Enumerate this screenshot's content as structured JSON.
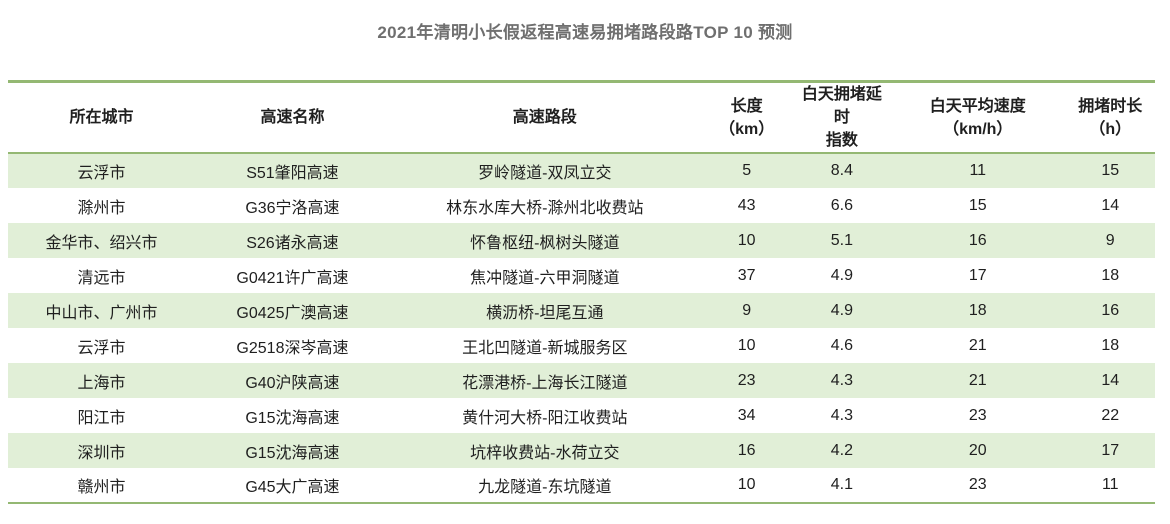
{
  "title": "2021年清明小长假返程高速易拥堵路段路TOP 10 预测",
  "theme": {
    "border_green": "#94b873",
    "stripe_green": "#e1efd7",
    "title_gray": "#6f6f6f",
    "text_color": "#1f1f1f"
  },
  "chart_data": {
    "type": "table",
    "title": "2021年清明小长假返程高速易拥堵路段路TOP 10 预测",
    "legend_position": "none",
    "grid": "striped-rows",
    "columns": [
      {
        "id": "city",
        "label": "所在城市",
        "label_lines": [
          "所在城市"
        ]
      },
      {
        "id": "highway",
        "label": "高速名称",
        "label_lines": [
          "高速名称"
        ]
      },
      {
        "id": "section",
        "label": "高速路段",
        "label_lines": [
          "高速路段"
        ]
      },
      {
        "id": "length_km",
        "label": "长度（km）",
        "label_lines": [
          "长度",
          "（km）"
        ]
      },
      {
        "id": "delay_index",
        "label": "白天拥堵延时指数",
        "label_lines": [
          "白天拥堵延时",
          "指数"
        ]
      },
      {
        "id": "avg_speed",
        "label": "白天平均速度（km/h）",
        "label_lines": [
          "白天平均速度",
          "（km/h）"
        ]
      },
      {
        "id": "jam_hours",
        "label": "拥堵时长（h）",
        "label_lines": [
          "拥堵时长",
          "（h）"
        ]
      }
    ],
    "rows": [
      [
        "云浮市",
        "S51肇阳高速",
        "罗岭隧道-双凤立交",
        "5",
        "8.4",
        "11",
        "15"
      ],
      [
        "滁州市",
        "G36宁洛高速",
        "林东水库大桥-滁州北收费站",
        "43",
        "6.6",
        "15",
        "14"
      ],
      [
        "金华市、绍兴市",
        "S26诸永高速",
        "怀鲁枢纽-枫树头隧道",
        "10",
        "5.1",
        "16",
        "9"
      ],
      [
        "清远市",
        "G0421许广高速",
        "焦冲隧道-六甲洞隧道",
        "37",
        "4.9",
        "17",
        "18"
      ],
      [
        "中山市、广州市",
        "G0425广澳高速",
        "横沥桥-坦尾互通",
        "9",
        "4.9",
        "18",
        "16"
      ],
      [
        "云浮市",
        "G2518深岑高速",
        "王北凹隧道-新城服务区",
        "10",
        "4.6",
        "21",
        "18"
      ],
      [
        "上海市",
        "G40沪陕高速",
        "花漂港桥-上海长江隧道",
        "23",
        "4.3",
        "21",
        "14"
      ],
      [
        "阳江市",
        "G15沈海高速",
        "黄什河大桥-阳江收费站",
        "34",
        "4.3",
        "23",
        "22"
      ],
      [
        "深圳市",
        "G15沈海高速",
        "坑梓收费站-水荷立交",
        "16",
        "4.2",
        "20",
        "17"
      ],
      [
        "赣州市",
        "G45大广高速",
        "九龙隧道-东坑隧道",
        "10",
        "4.1",
        "23",
        "11"
      ]
    ]
  }
}
